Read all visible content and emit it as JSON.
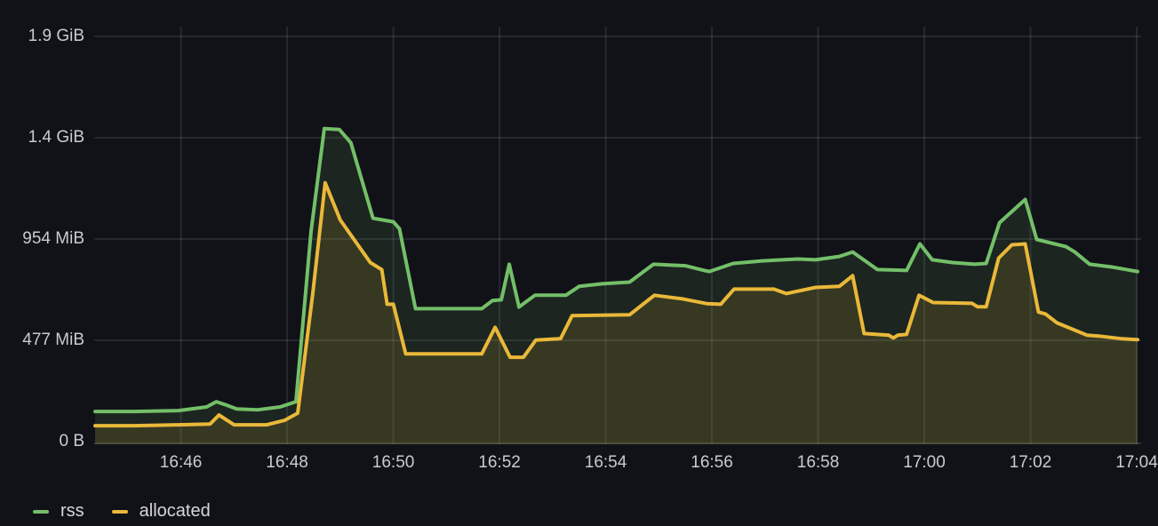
{
  "panel": {
    "background_color": "#111217",
    "text_color": "#C9CBD1"
  },
  "chart_data": {
    "type": "area",
    "title": "",
    "legend_position": "bottom-left",
    "grid": true,
    "x_axis": {
      "unit": "time",
      "epoch": "16:44:00",
      "start_sec": 22,
      "end_sec": 1205,
      "ticks": [
        {
          "sec": 120,
          "label": "16:46"
        },
        {
          "sec": 240,
          "label": "16:48"
        },
        {
          "sec": 360,
          "label": "16:50"
        },
        {
          "sec": 480,
          "label": "16:52"
        },
        {
          "sec": 600,
          "label": "16:54"
        },
        {
          "sec": 720,
          "label": "16:56"
        },
        {
          "sec": 840,
          "label": "16:58"
        },
        {
          "sec": 960,
          "label": "17:00"
        },
        {
          "sec": 1080,
          "label": "17:02"
        },
        {
          "sec": 1200,
          "label": "17:04"
        }
      ]
    },
    "y_axis": {
      "unit": "bytes (IEC)",
      "min_mib": 0,
      "max_mib": 1954,
      "ticks": [
        {
          "mib": 0,
          "label": "0 B"
        },
        {
          "mib": 477,
          "label": "477 MiB"
        },
        {
          "mib": 954,
          "label": "954 MiB"
        },
        {
          "mib": 1431,
          "label": "1.4 GiB"
        },
        {
          "mib": 1908,
          "label": "1.9 GiB"
        }
      ]
    },
    "series": [
      {
        "name": "rss",
        "color": "#73BF69",
        "fill_opacity": 0.11,
        "points_t_sec_v_mib": [
          [
            23,
            142
          ],
          [
            67,
            142
          ],
          [
            117,
            146
          ],
          [
            149,
            163
          ],
          [
            160,
            188
          ],
          [
            172,
            171
          ],
          [
            183,
            154
          ],
          [
            207,
            150
          ],
          [
            232,
            163
          ],
          [
            250,
            188
          ],
          [
            267,
            990
          ],
          [
            282,
            1474
          ],
          [
            299,
            1470
          ],
          [
            312,
            1407
          ],
          [
            337,
            1052
          ],
          [
            360,
            1035
          ],
          [
            367,
            1002
          ],
          [
            385,
            626
          ],
          [
            460,
            626
          ],
          [
            472,
            664
          ],
          [
            482,
            668
          ],
          [
            491,
            835
          ],
          [
            502,
            634
          ],
          [
            520,
            689
          ],
          [
            555,
            689
          ],
          [
            570,
            731
          ],
          [
            596,
            743
          ],
          [
            627,
            751
          ],
          [
            654,
            835
          ],
          [
            690,
            828
          ],
          [
            712,
            805
          ],
          [
            717,
            801
          ],
          [
            744,
            839
          ],
          [
            777,
            851
          ],
          [
            817,
            860
          ],
          [
            837,
            856
          ],
          [
            864,
            872
          ],
          [
            879,
            893
          ],
          [
            907,
            810
          ],
          [
            940,
            806
          ],
          [
            955,
            931
          ],
          [
            969,
            856
          ],
          [
            992,
            843
          ],
          [
            1017,
            835
          ],
          [
            1030,
            839
          ],
          [
            1045,
            1031
          ],
          [
            1074,
            1140
          ],
          [
            1087,
            952
          ],
          [
            1120,
            918
          ],
          [
            1130,
            893
          ],
          [
            1147,
            835
          ],
          [
            1172,
            822
          ],
          [
            1201,
            801
          ]
        ]
      },
      {
        "name": "allocated",
        "color": "#EAB839",
        "fill_opacity": 0.13,
        "points_t_sec_v_mib": [
          [
            23,
            75
          ],
          [
            67,
            75
          ],
          [
            117,
            79
          ],
          [
            153,
            83
          ],
          [
            163,
            125
          ],
          [
            180,
            79
          ],
          [
            217,
            79
          ],
          [
            237,
            100
          ],
          [
            252,
            134
          ],
          [
            269,
            700
          ],
          [
            283,
            1219
          ],
          [
            300,
            1044
          ],
          [
            334,
            843
          ],
          [
            347,
            810
          ],
          [
            353,
            647
          ],
          [
            360,
            647
          ],
          [
            374,
            413
          ],
          [
            460,
            413
          ],
          [
            475,
            538
          ],
          [
            492,
            397
          ],
          [
            507,
            397
          ],
          [
            521,
            478
          ],
          [
            549,
            485
          ],
          [
            562,
            593
          ],
          [
            627,
            597
          ],
          [
            655,
            689
          ],
          [
            687,
            672
          ],
          [
            714,
            650
          ],
          [
            730,
            647
          ],
          [
            745,
            718
          ],
          [
            790,
            718
          ],
          [
            804,
            697
          ],
          [
            837,
            726
          ],
          [
            864,
            731
          ],
          [
            879,
            781
          ],
          [
            892,
            509
          ],
          [
            920,
            501
          ],
          [
            925,
            488
          ],
          [
            930,
            501
          ],
          [
            940,
            505
          ],
          [
            954,
            689
          ],
          [
            970,
            655
          ],
          [
            1014,
            651
          ],
          [
            1020,
            635
          ],
          [
            1030,
            635
          ],
          [
            1044,
            864
          ],
          [
            1059,
            927
          ],
          [
            1074,
            931
          ],
          [
            1089,
            610
          ],
          [
            1097,
            601
          ],
          [
            1110,
            559
          ],
          [
            1144,
            501
          ],
          [
            1157,
            497
          ],
          [
            1184,
            484
          ],
          [
            1201,
            480
          ]
        ]
      }
    ]
  },
  "legend": {
    "items": [
      {
        "label": "rss"
      },
      {
        "label": "allocated"
      }
    ]
  }
}
